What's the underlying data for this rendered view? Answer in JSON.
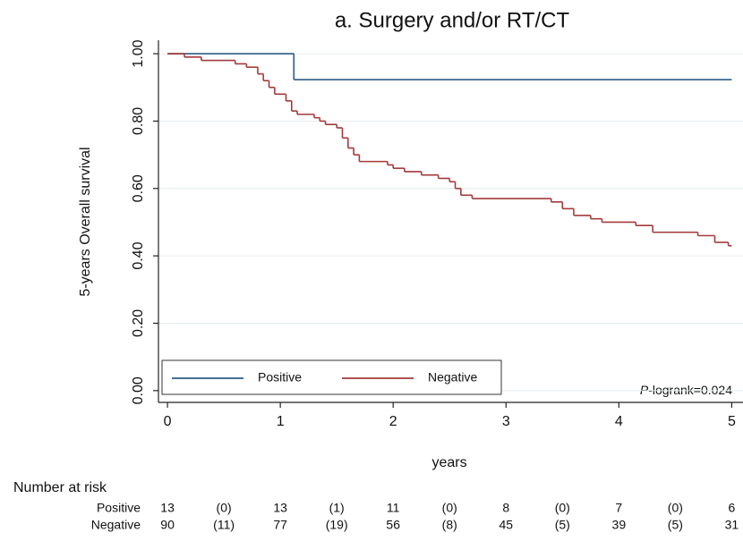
{
  "chart_data": {
    "type": "step",
    "title": "a. Surgery and/or RT/CT",
    "x_label": "years",
    "y_label": "5-years Overall survival",
    "xlim": [
      -0.08,
      5.1
    ],
    "ylim": [
      -0.035,
      1.04
    ],
    "xticks": [
      0,
      1,
      2,
      3,
      4,
      5
    ],
    "yticks": [
      {
        "value": 0,
        "label": "0.00"
      },
      {
        "value": 0.2,
        "label": "0.20"
      },
      {
        "value": 0.4,
        "label": "0.40"
      },
      {
        "value": 0.6,
        "label": "0.60"
      },
      {
        "value": 0.8,
        "label": "0.80"
      },
      {
        "value": 1,
        "label": "1.00"
      }
    ],
    "grid": true,
    "legend": "lower left",
    "series": [
      {
        "name": "Positive",
        "color": "#2b5b84",
        "x": [
          0,
          1.12,
          5
        ],
        "values": [
          1.0,
          0.923,
          0.923
        ]
      },
      {
        "name": "Negative",
        "color": "#a33a3a",
        "x": [
          0,
          0.15,
          0.3,
          0.6,
          0.7,
          0.8,
          0.85,
          0.9,
          0.95,
          1.05,
          1.1,
          1.15,
          1.3,
          1.35,
          1.4,
          1.5,
          1.55,
          1.6,
          1.65,
          1.7,
          1.95,
          2.0,
          2.1,
          2.25,
          2.4,
          2.5,
          2.55,
          2.6,
          2.7,
          3.4,
          3.5,
          3.6,
          3.75,
          3.85,
          4.15,
          4.3,
          4.7,
          4.85,
          4.97,
          5.0
        ],
        "values": [
          1.0,
          0.99,
          0.98,
          0.97,
          0.96,
          0.94,
          0.92,
          0.9,
          0.88,
          0.86,
          0.83,
          0.82,
          0.81,
          0.8,
          0.79,
          0.78,
          0.75,
          0.72,
          0.7,
          0.68,
          0.67,
          0.66,
          0.65,
          0.64,
          0.63,
          0.62,
          0.6,
          0.58,
          0.57,
          0.56,
          0.54,
          0.52,
          0.51,
          0.5,
          0.49,
          0.47,
          0.46,
          0.44,
          0.43,
          0.43
        ]
      }
    ],
    "annotation": {
      "italic": "P",
      "text": "-logrank=0.024"
    },
    "risk_table": {
      "title": "Number at risk",
      "rows": [
        {
          "name": "Positive",
          "cells": [
            "13",
            "(0)",
            "13",
            "(1)",
            "11",
            "(0)",
            "8",
            "(0)",
            "7",
            "(0)",
            "6"
          ]
        },
        {
          "name": "Negative",
          "cells": [
            "90",
            "(11)",
            "77",
            "(19)",
            "56",
            "(8)",
            "45",
            "(5)",
            "39",
            "(5)",
            "31"
          ]
        }
      ]
    }
  }
}
